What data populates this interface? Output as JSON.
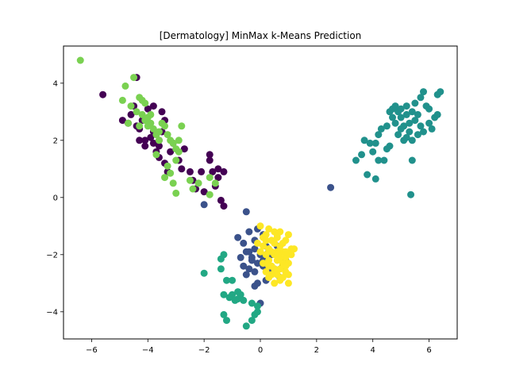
{
  "chart_data": {
    "type": "scatter",
    "title": "[Dermatology] MinMax k-Means Prediction",
    "xlabel": "",
    "ylabel": "",
    "xlim": [
      -7,
      7
    ],
    "ylim": [
      -4.95,
      5.3
    ],
    "xticks": [
      -6,
      -4,
      -2,
      0,
      2,
      4,
      6
    ],
    "yticks": [
      -4,
      -2,
      0,
      2,
      4
    ],
    "grid": false,
    "legend": "none",
    "series": [
      {
        "color": "#440154",
        "points": [
          [
            -5.6,
            3.6
          ],
          [
            -4.4,
            4.2
          ],
          [
            -4.9,
            2.7
          ],
          [
            -4.7,
            2.6
          ],
          [
            -4.6,
            2.9
          ],
          [
            -4.5,
            3.2
          ],
          [
            -4.4,
            2.5
          ],
          [
            -4.3,
            2.4
          ],
          [
            -4.2,
            2.7
          ],
          [
            -4.1,
            2.0
          ],
          [
            -4.1,
            1.8
          ],
          [
            -4.0,
            3.1
          ],
          [
            -3.9,
            2.1
          ],
          [
            -3.8,
            2.3
          ],
          [
            -3.8,
            1.9
          ],
          [
            -3.7,
            1.6
          ],
          [
            -3.6,
            1.4
          ],
          [
            -3.6,
            1.8
          ],
          [
            -3.5,
            2.3
          ],
          [
            -3.5,
            3.0
          ],
          [
            -3.4,
            1.2
          ],
          [
            -3.3,
            0.9
          ],
          [
            -3.2,
            1.6
          ],
          [
            -3.1,
            1.9
          ],
          [
            -3.4,
            2.7
          ],
          [
            -3.6,
            2.0
          ],
          [
            -2.9,
            1.3
          ],
          [
            -2.8,
            1.0
          ],
          [
            -2.7,
            1.7
          ],
          [
            -2.5,
            0.9
          ],
          [
            -2.4,
            0.6
          ],
          [
            -2.3,
            0.3
          ],
          [
            -2.1,
            0.9
          ],
          [
            -2.0,
            0.2
          ],
          [
            -1.8,
            1.5
          ],
          [
            -1.8,
            1.3
          ],
          [
            -1.7,
            0.9
          ],
          [
            -1.6,
            0.4
          ],
          [
            -1.5,
            0.7
          ],
          [
            -1.4,
            -0.1
          ],
          [
            -1.3,
            0.9
          ],
          [
            -1.3,
            -0.3
          ],
          [
            -1.5,
            1.0
          ],
          [
            -3.8,
            3.2
          ],
          [
            -4.3,
            2.0
          ]
        ]
      },
      {
        "color": "#3b528b",
        "points": [
          [
            2.5,
            0.35
          ],
          [
            -2.0,
            -0.25
          ],
          [
            -0.5,
            -0.5
          ],
          [
            -0.8,
            -1.4
          ],
          [
            -0.6,
            -1.6
          ],
          [
            -0.4,
            -1.9
          ],
          [
            -0.3,
            -2.1
          ],
          [
            -0.2,
            -1.8
          ],
          [
            -0.1,
            -2.3
          ],
          [
            0.0,
            -2.0
          ],
          [
            0.1,
            -2.4
          ],
          [
            0.2,
            -1.7
          ],
          [
            0.3,
            -2.6
          ],
          [
            -0.5,
            -2.7
          ],
          [
            -0.3,
            -2.2
          ],
          [
            -0.7,
            -2.1
          ],
          [
            -0.6,
            -2.4
          ],
          [
            -0.2,
            -1.5
          ],
          [
            -0.4,
            -1.2
          ],
          [
            0.1,
            -1.3
          ],
          [
            0.5,
            -2.5
          ],
          [
            0.7,
            -2.8
          ],
          [
            0.8,
            -2.4
          ],
          [
            0.9,
            -2.2
          ],
          [
            0.4,
            -2.0
          ],
          [
            0.2,
            -2.9
          ],
          [
            -0.1,
            -3.0
          ],
          [
            0.0,
            -3.7
          ],
          [
            -0.2,
            -3.1
          ],
          [
            -0.1,
            -1.1
          ],
          [
            0.3,
            -1.9
          ],
          [
            0.6,
            -1.7
          ],
          [
            -0.4,
            -2.5
          ],
          [
            -0.5,
            -1.9
          ],
          [
            -0.2,
            -2.6
          ],
          [
            0.1,
            -2.2
          ]
        ]
      },
      {
        "color": "#21918c",
        "points": [
          [
            3.4,
            1.3
          ],
          [
            3.6,
            1.5
          ],
          [
            3.7,
            2.0
          ],
          [
            3.8,
            0.8
          ],
          [
            3.9,
            1.9
          ],
          [
            4.0,
            1.6
          ],
          [
            4.1,
            0.65
          ],
          [
            4.2,
            1.3
          ],
          [
            4.2,
            2.2
          ],
          [
            4.3,
            2.4
          ],
          [
            4.4,
            1.3
          ],
          [
            4.5,
            1.7
          ],
          [
            4.5,
            2.5
          ],
          [
            4.6,
            1.8
          ],
          [
            4.6,
            3.0
          ],
          [
            4.7,
            2.8
          ],
          [
            4.7,
            3.1
          ],
          [
            4.8,
            2.6
          ],
          [
            4.9,
            3.0
          ],
          [
            4.9,
            2.2
          ],
          [
            5.0,
            2.8
          ],
          [
            5.0,
            3.1
          ],
          [
            5.1,
            2.0
          ],
          [
            5.1,
            2.5
          ],
          [
            5.2,
            2.9
          ],
          [
            5.2,
            3.2
          ],
          [
            5.3,
            2.3
          ],
          [
            5.3,
            2.6
          ],
          [
            5.4,
            2.0
          ],
          [
            5.4,
            3.0
          ],
          [
            5.5,
            2.7
          ],
          [
            5.5,
            3.3
          ],
          [
            5.6,
            2.2
          ],
          [
            5.6,
            2.9
          ],
          [
            5.7,
            3.5
          ],
          [
            5.7,
            2.5
          ],
          [
            5.8,
            3.7
          ],
          [
            5.8,
            2.3
          ],
          [
            5.9,
            3.2
          ],
          [
            6.0,
            2.6
          ],
          [
            6.0,
            3.1
          ],
          [
            6.1,
            2.4
          ],
          [
            6.2,
            2.8
          ],
          [
            6.3,
            3.6
          ],
          [
            6.4,
            3.7
          ],
          [
            6.3,
            2.9
          ],
          [
            5.4,
            1.3
          ],
          [
            5.35,
            0.1
          ],
          [
            4.1,
            1.9
          ],
          [
            5.0,
            2.4
          ],
          [
            5.2,
            2.1
          ],
          [
            4.8,
            3.2
          ]
        ]
      },
      {
        "color": "#22a884",
        "points": [
          [
            -2.0,
            -2.65
          ],
          [
            -1.4,
            -2.15
          ],
          [
            -1.4,
            -2.5
          ],
          [
            -1.3,
            -2.0
          ],
          [
            -1.2,
            -2.9
          ],
          [
            -1.0,
            -2.9
          ],
          [
            -1.0,
            -3.4
          ],
          [
            -1.1,
            -3.5
          ],
          [
            -0.8,
            -3.3
          ],
          [
            -0.9,
            -3.6
          ],
          [
            -0.7,
            -3.4
          ],
          [
            -0.6,
            -3.6
          ],
          [
            -1.3,
            -3.4
          ],
          [
            -1.3,
            -4.1
          ],
          [
            -1.2,
            -4.3
          ],
          [
            -0.5,
            -4.5
          ],
          [
            -0.3,
            -4.3
          ],
          [
            -0.2,
            -4.1
          ],
          [
            -0.1,
            -4.0
          ],
          [
            -0.1,
            -3.8
          ],
          [
            -0.3,
            -3.7
          ],
          [
            -0.8,
            -3.55
          ]
        ]
      },
      {
        "color": "#7ad151",
        "points": [
          [
            -6.4,
            4.8
          ],
          [
            -4.8,
            3.9
          ],
          [
            -4.9,
            3.4
          ],
          [
            -4.6,
            3.2
          ],
          [
            -4.5,
            4.2
          ],
          [
            -4.3,
            3.5
          ],
          [
            -4.2,
            3.4
          ],
          [
            -4.1,
            3.3
          ],
          [
            -4.2,
            2.9
          ],
          [
            -4.1,
            2.7
          ],
          [
            -4.0,
            2.5
          ],
          [
            -3.9,
            2.6
          ],
          [
            -3.8,
            2.4
          ],
          [
            -3.7,
            2.2
          ],
          [
            -3.6,
            2.3
          ],
          [
            -3.9,
            2.9
          ],
          [
            -4.0,
            2.8
          ],
          [
            -3.5,
            2.6
          ],
          [
            -3.4,
            2.5
          ],
          [
            -3.3,
            2.2
          ],
          [
            -3.2,
            2.0
          ],
          [
            -3.1,
            1.9
          ],
          [
            -3.0,
            1.7
          ],
          [
            -2.9,
            2.0
          ],
          [
            -2.8,
            2.5
          ],
          [
            -2.9,
            1.6
          ],
          [
            -3.0,
            1.3
          ],
          [
            -3.1,
            0.5
          ],
          [
            -3.2,
            0.85
          ],
          [
            -3.3,
            1.1
          ],
          [
            -3.4,
            0.7
          ],
          [
            -3.0,
            0.15
          ],
          [
            -2.5,
            0.6
          ],
          [
            -2.4,
            0.3
          ],
          [
            -2.2,
            0.5
          ],
          [
            -1.8,
            0.7
          ],
          [
            -1.6,
            0.5
          ],
          [
            -1.8,
            0.1
          ],
          [
            -4.7,
            2.6
          ],
          [
            -4.3,
            2.5
          ],
          [
            -3.6,
            2.0
          ],
          [
            -3.7,
            1.5
          ],
          [
            -4.4,
            3.0
          ]
        ]
      },
      {
        "color": "#fde725",
        "points": [
          [
            0.0,
            -1.0
          ],
          [
            0.2,
            -1.3
          ],
          [
            0.4,
            -1.5
          ],
          [
            0.3,
            -1.8
          ],
          [
            0.5,
            -1.6
          ],
          [
            0.6,
            -1.4
          ],
          [
            0.7,
            -1.7
          ],
          [
            0.8,
            -1.9
          ],
          [
            0.9,
            -1.5
          ],
          [
            1.0,
            -1.3
          ],
          [
            1.1,
            -1.8
          ],
          [
            0.9,
            -2.1
          ],
          [
            0.8,
            -2.3
          ],
          [
            0.7,
            -2.5
          ],
          [
            0.6,
            -2.2
          ],
          [
            0.5,
            -2.0
          ],
          [
            0.4,
            -2.4
          ],
          [
            0.3,
            -2.2
          ],
          [
            0.2,
            -2.0
          ],
          [
            0.1,
            -1.7
          ],
          [
            0.0,
            -1.9
          ],
          [
            -0.1,
            -1.6
          ],
          [
            0.3,
            -1.1
          ],
          [
            0.5,
            -1.2
          ],
          [
            0.6,
            -2.7
          ],
          [
            0.7,
            -2.9
          ],
          [
            0.9,
            -2.6
          ],
          [
            1.0,
            -2.3
          ],
          [
            1.1,
            -2.0
          ],
          [
            1.0,
            -3.0
          ],
          [
            0.5,
            -3.0
          ],
          [
            0.3,
            -2.8
          ],
          [
            0.2,
            -2.6
          ],
          [
            0.4,
            -2.7
          ],
          [
            0.6,
            -1.9
          ],
          [
            0.8,
            -1.6
          ],
          [
            1.2,
            -1.8
          ],
          [
            0.1,
            -1.4
          ],
          [
            0.4,
            -1.9
          ],
          [
            0.7,
            -2.1
          ],
          [
            0.9,
            -2.4
          ],
          [
            0.5,
            -2.5
          ],
          [
            0.2,
            -1.5
          ],
          [
            0.8,
            -2.8
          ],
          [
            1.0,
            -2.7
          ],
          [
            0.6,
            -1.3
          ],
          [
            0.9,
            -1.9
          ],
          [
            0.3,
            -2.4
          ],
          [
            0.1,
            -2.3
          ],
          [
            0.7,
            -1.2
          ]
        ]
      }
    ]
  }
}
